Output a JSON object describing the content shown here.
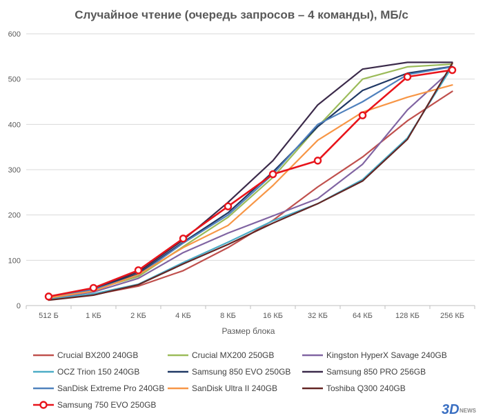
{
  "chart_data": {
    "type": "line",
    "title": "Случайное чтение (очередь запросов – 4 команды), МБ/с",
    "xlabel": "Размер блока",
    "ylabel": "",
    "categories": [
      "512 Б",
      "1 КБ",
      "2 КБ",
      "4 КБ",
      "8 КБ",
      "16 КБ",
      "32 КБ",
      "64 КБ",
      "128 КБ",
      "256 КБ"
    ],
    "ylim": [
      0,
      600
    ],
    "yticks": [
      0,
      100,
      200,
      300,
      400,
      500,
      600
    ],
    "grid": true,
    "legend_position": "bottom",
    "series": [
      {
        "name": "Crucial BX200 240GB",
        "color": "#c0504d",
        "values": [
          13,
          24,
          43,
          77,
          128,
          188,
          262,
          328,
          408,
          473
        ]
      },
      {
        "name": "Crucial MX200 250GB",
        "color": "#9bbb59",
        "values": [
          16,
          35,
          64,
          130,
          195,
          283,
          395,
          500,
          527,
          533
        ]
      },
      {
        "name": "Kingston HyperX Savage 240GB",
        "color": "#8064a2",
        "values": [
          15,
          30,
          60,
          117,
          160,
          198,
          236,
          312,
          432,
          522
        ]
      },
      {
        "name": "OCZ Trion 150 240GB",
        "color": "#4bacc6",
        "values": [
          14,
          26,
          47,
          95,
          140,
          187,
          225,
          278,
          370,
          528
        ]
      },
      {
        "name": "Samsung 850 EVO 250GB",
        "color": "#1f3864",
        "values": [
          17,
          37,
          70,
          140,
          205,
          295,
          395,
          475,
          513,
          528
        ]
      },
      {
        "name": "Samsung 850 PRO 256GB",
        "color": "#3b2a4a",
        "values": [
          18,
          38,
          74,
          145,
          228,
          320,
          443,
          522,
          537,
          537
        ]
      },
      {
        "name": "SanDisk Extreme Pro 240GB",
        "color": "#4f81bd",
        "values": [
          17,
          35,
          67,
          138,
          200,
          290,
          400,
          450,
          510,
          527
        ]
      },
      {
        "name": "SanDisk Ultra II 240GB",
        "color": "#f79646",
        "values": [
          17,
          32,
          68,
          128,
          177,
          265,
          365,
          427,
          460,
          487
        ]
      },
      {
        "name": "Toshiba Q300 240GB",
        "color": "#632523",
        "values": [
          12,
          23,
          46,
          92,
          135,
          182,
          225,
          275,
          367,
          535
        ]
      },
      {
        "name": "Samsung 750 EVO 250GB",
        "color": "#e8141b",
        "marker": "circle",
        "values": [
          20,
          39,
          78,
          148,
          219,
          290,
          320,
          420,
          505,
          520
        ]
      }
    ]
  }
}
